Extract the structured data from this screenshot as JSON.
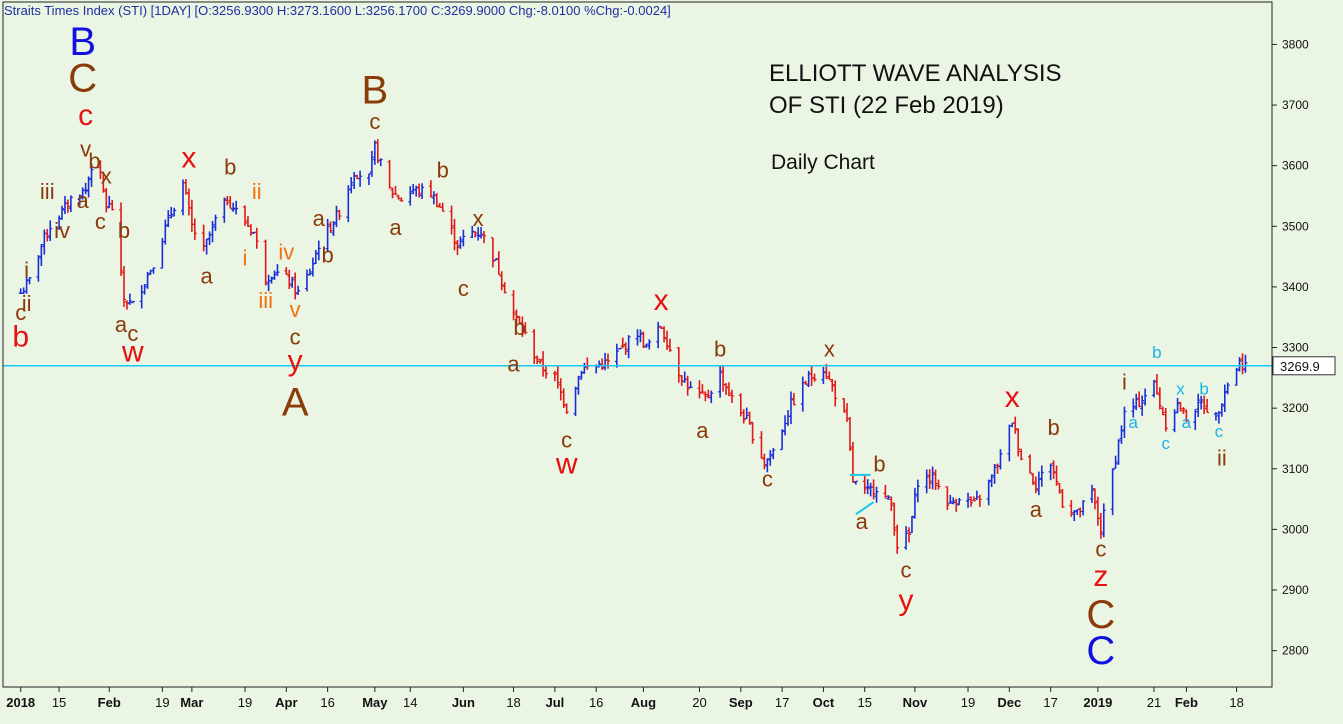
{
  "header": {
    "text": "Straits Times Index (STI) [1DAY] [O:3256.9300 H:3273.1600 L:3256.1700 C:3269.9000 Chg:-8.0100 %Chg:-0.0024]"
  },
  "annotation": {
    "title_line1": "ELLIOTT WAVE ANALYSIS",
    "title_line2": "OF STI (22 Feb 2019)",
    "subtitle": "Daily Chart"
  },
  "colors": {
    "background": "#eaf5e4",
    "up_bar": "#1a2ed8",
    "down_bar": "#e01818",
    "price_line": "#18c8f0",
    "label_brown": "#8b3a0a",
    "label_red": "#e81010",
    "label_blue": "#1010e0",
    "label_orange": "#f07010",
    "label_cyan": "#18b4e8"
  },
  "chart_data": {
    "type": "line",
    "series": [
      {
        "values": [
          [
            "2018-01-02",
            3390
          ],
          [
            "2018-01-05",
            3410
          ],
          [
            "2018-01-09",
            3470
          ],
          [
            "2018-01-12",
            3500
          ],
          [
            "2018-01-17",
            3530
          ],
          [
            "2018-01-19",
            3545
          ],
          [
            "2018-01-24",
            3560
          ],
          [
            "2018-01-26",
            3600
          ],
          [
            "2018-01-29",
            3580
          ],
          [
            "2018-01-31",
            3535
          ],
          [
            "2018-02-02",
            3530
          ],
          [
            "2018-02-06",
            3380
          ],
          [
            "2018-02-09",
            3370
          ],
          [
            "2018-02-13",
            3410
          ],
          [
            "2018-02-16",
            3440
          ],
          [
            "2018-02-21",
            3510
          ],
          [
            "2018-02-26",
            3570
          ],
          [
            "2018-03-01",
            3500
          ],
          [
            "2018-03-05",
            3460
          ],
          [
            "2018-03-09",
            3510
          ],
          [
            "2018-03-13",
            3545
          ],
          [
            "2018-03-16",
            3525
          ],
          [
            "2018-03-22",
            3490
          ],
          [
            "2018-03-26",
            3415
          ],
          [
            "2018-03-29",
            3425
          ],
          [
            "2018-04-03",
            3410
          ],
          [
            "2018-04-06",
            3390
          ],
          [
            "2018-04-10",
            3425
          ],
          [
            "2018-04-13",
            3470
          ],
          [
            "2018-04-17",
            3500
          ],
          [
            "2018-04-20",
            3525
          ],
          [
            "2018-04-25",
            3590
          ],
          [
            "2018-04-30",
            3580
          ],
          [
            "2018-05-02",
            3630
          ],
          [
            "2018-05-07",
            3560
          ],
          [
            "2018-05-11",
            3545
          ],
          [
            "2018-05-15",
            3560
          ],
          [
            "2018-05-21",
            3555
          ],
          [
            "2018-05-25",
            3525
          ],
          [
            "2018-05-30",
            3470
          ],
          [
            "2018-06-04",
            3490
          ],
          [
            "2018-06-07",
            3490
          ],
          [
            "2018-06-12",
            3440
          ],
          [
            "2018-06-18",
            3355
          ],
          [
            "2018-06-22",
            3320
          ],
          [
            "2018-06-27",
            3270
          ],
          [
            "2018-07-02",
            3250
          ],
          [
            "2018-07-06",
            3200
          ],
          [
            "2018-07-11",
            3265
          ],
          [
            "2018-07-16",
            3270
          ],
          [
            "2018-07-20",
            3275
          ],
          [
            "2018-07-25",
            3300
          ],
          [
            "2018-07-30",
            3325
          ],
          [
            "2018-08-02",
            3300
          ],
          [
            "2018-08-07",
            3335
          ],
          [
            "2018-08-13",
            3260
          ],
          [
            "2018-08-17",
            3230
          ],
          [
            "2018-08-22",
            3215
          ],
          [
            "2018-08-27",
            3255
          ],
          [
            "2018-08-31",
            3215
          ],
          [
            "2018-09-05",
            3180
          ],
          [
            "2018-09-11",
            3110
          ],
          [
            "2018-09-14",
            3130
          ],
          [
            "2018-09-20",
            3205
          ],
          [
            "2018-09-26",
            3250
          ],
          [
            "2018-10-01",
            3265
          ],
          [
            "2018-10-04",
            3235
          ],
          [
            "2018-10-09",
            3175
          ],
          [
            "2018-10-11",
            3080
          ],
          [
            "2018-10-15",
            3060
          ],
          [
            "2018-10-19",
            3070
          ],
          [
            "2018-10-24",
            3040
          ],
          [
            "2018-10-26",
            2975
          ],
          [
            "2018-10-30",
            2990
          ],
          [
            "2018-11-02",
            3080
          ],
          [
            "2018-11-07",
            3085
          ],
          [
            "2018-11-13",
            3040
          ],
          [
            "2018-11-16",
            3055
          ],
          [
            "2018-11-21",
            3040
          ],
          [
            "2018-11-26",
            3075
          ],
          [
            "2018-11-30",
            3120
          ],
          [
            "2018-12-04",
            3180
          ],
          [
            "2018-12-07",
            3120
          ],
          [
            "2018-12-12",
            3075
          ],
          [
            "2018-12-17",
            3110
          ],
          [
            "2018-12-21",
            3045
          ],
          [
            "2018-12-26",
            3025
          ],
          [
            "2018-12-31",
            3060
          ],
          [
            "2019-01-03",
            3000
          ],
          [
            "2019-01-08",
            3120
          ],
          [
            "2019-01-11",
            3190
          ],
          [
            "2019-01-16",
            3210
          ],
          [
            "2019-01-21",
            3240
          ],
          [
            "2019-01-25",
            3175
          ],
          [
            "2019-01-29",
            3205
          ],
          [
            "2019-02-01",
            3185
          ],
          [
            "2019-02-06",
            3210
          ],
          [
            "2019-02-11",
            3185
          ],
          [
            "2019-02-14",
            3230
          ],
          [
            "2019-02-19",
            3275
          ],
          [
            "2019-02-22",
            3270
          ]
        ]
      }
    ],
    "current_price": 3269.9,
    "current_price_label": "3269.9",
    "ylim": [
      2740,
      3870
    ],
    "yticks": [
      2800,
      2900,
      3000,
      3100,
      3200,
      3300,
      3400,
      3500,
      3600,
      3700,
      3800
    ],
    "xlim": [
      "2017-12-27",
      "2019-03-02"
    ],
    "xticks": [
      {
        "label": "2018",
        "date": "2018-01-02",
        "bold": true
      },
      {
        "label": "15",
        "date": "2018-01-15",
        "bold": false
      },
      {
        "label": "Feb",
        "date": "2018-02-01",
        "bold": true
      },
      {
        "label": "19",
        "date": "2018-02-19",
        "bold": false
      },
      {
        "label": "Mar",
        "date": "2018-03-01",
        "bold": true
      },
      {
        "label": "19",
        "date": "2018-03-19",
        "bold": false
      },
      {
        "label": "Apr",
        "date": "2018-04-02",
        "bold": true
      },
      {
        "label": "16",
        "date": "2018-04-16",
        "bold": false
      },
      {
        "label": "May",
        "date": "2018-05-02",
        "bold": true
      },
      {
        "label": "14",
        "date": "2018-05-14",
        "bold": false
      },
      {
        "label": "Jun",
        "date": "2018-06-01",
        "bold": true
      },
      {
        "label": "18",
        "date": "2018-06-18",
        "bold": false
      },
      {
        "label": "Jul",
        "date": "2018-07-02",
        "bold": true
      },
      {
        "label": "16",
        "date": "2018-07-16",
        "bold": false
      },
      {
        "label": "Aug",
        "date": "2018-08-01",
        "bold": true
      },
      {
        "label": "20",
        "date": "2018-08-20",
        "bold": false
      },
      {
        "label": "Sep",
        "date": "2018-09-03",
        "bold": true
      },
      {
        "label": "17",
        "date": "2018-09-17",
        "bold": false
      },
      {
        "label": "Oct",
        "date": "2018-10-01",
        "bold": true
      },
      {
        "label": "15",
        "date": "2018-10-15",
        "bold": false
      },
      {
        "label": "Nov",
        "date": "2018-11-01",
        "bold": true
      },
      {
        "label": "19",
        "date": "2018-11-19",
        "bold": false
      },
      {
        "label": "Dec",
        "date": "2018-12-03",
        "bold": true
      },
      {
        "label": "17",
        "date": "2018-12-17",
        "bold": false
      },
      {
        "label": "2019",
        "date": "2019-01-02",
        "bold": true
      },
      {
        "label": "21",
        "date": "2019-01-21",
        "bold": false
      },
      {
        "label": "Feb",
        "date": "2019-02-01",
        "bold": true
      },
      {
        "label": "18",
        "date": "2019-02-18",
        "bold": false
      }
    ],
    "wave_labels": [
      {
        "text": "B",
        "date": "2018-01-23",
        "price": 3800,
        "color": "blue",
        "size": "xl"
      },
      {
        "text": "C",
        "date": "2018-01-23",
        "price": 3740,
        "color": "brown",
        "size": "xl"
      },
      {
        "text": "c",
        "date": "2018-01-24",
        "price": 3680,
        "color": "red",
        "size": "l"
      },
      {
        "text": "v",
        "date": "2018-01-24",
        "price": 3625,
        "color": "brown",
        "size": "m"
      },
      {
        "text": "b",
        "date": "2018-01-27",
        "price": 3605,
        "color": "brown",
        "size": "m"
      },
      {
        "text": "x",
        "date": "2018-01-31",
        "price": 3580,
        "color": "brown",
        "size": "m"
      },
      {
        "text": "iii",
        "date": "2018-01-11",
        "price": 3555,
        "color": "brown",
        "size": "m"
      },
      {
        "text": "a",
        "date": "2018-01-23",
        "price": 3540,
        "color": "brown",
        "size": "m"
      },
      {
        "text": "c",
        "date": "2018-01-29",
        "price": 3505,
        "color": "brown",
        "size": "m"
      },
      {
        "text": "iv",
        "date": "2018-01-16",
        "price": 3490,
        "color": "brown",
        "size": "m"
      },
      {
        "text": "b",
        "date": "2018-02-06",
        "price": 3490,
        "color": "brown",
        "size": "m"
      },
      {
        "text": "i",
        "date": "2018-01-04",
        "price": 3425,
        "color": "brown",
        "size": "m"
      },
      {
        "text": "ii",
        "date": "2018-01-04",
        "price": 3370,
        "color": "brown",
        "size": "m"
      },
      {
        "text": "c",
        "date": "2018-01-02",
        "price": 3355,
        "color": "brown",
        "size": "m"
      },
      {
        "text": "b",
        "date": "2018-01-02",
        "price": 3315,
        "color": "red",
        "size": "l"
      },
      {
        "text": "a",
        "date": "2018-02-05",
        "price": 3335,
        "color": "brown",
        "size": "m"
      },
      {
        "text": "c",
        "date": "2018-02-09",
        "price": 3320,
        "color": "brown",
        "size": "m"
      },
      {
        "text": "w",
        "date": "2018-02-09",
        "price": 3290,
        "color": "red",
        "size": "l"
      },
      {
        "text": "x",
        "date": "2018-02-28",
        "price": 3610,
        "color": "red",
        "size": "l"
      },
      {
        "text": "b",
        "date": "2018-03-14",
        "price": 3595,
        "color": "brown",
        "size": "m"
      },
      {
        "text": "ii",
        "date": "2018-03-23",
        "price": 3555,
        "color": "orange",
        "size": "m"
      },
      {
        "text": "a",
        "date": "2018-03-06",
        "price": 3415,
        "color": "brown",
        "size": "m"
      },
      {
        "text": "i",
        "date": "2018-03-19",
        "price": 3445,
        "color": "orange",
        "size": "m"
      },
      {
        "text": "iv",
        "date": "2018-04-02",
        "price": 3455,
        "color": "orange",
        "size": "m"
      },
      {
        "text": "iii",
        "date": "2018-03-26",
        "price": 3375,
        "color": "orange",
        "size": "m"
      },
      {
        "text": "v",
        "date": "2018-04-05",
        "price": 3360,
        "color": "orange",
        "size": "m"
      },
      {
        "text": "c",
        "date": "2018-04-05",
        "price": 3315,
        "color": "brown",
        "size": "m"
      },
      {
        "text": "y",
        "date": "2018-04-05",
        "price": 3275,
        "color": "red",
        "size": "l"
      },
      {
        "text": "A",
        "date": "2018-04-05",
        "price": 3205,
        "color": "brown",
        "size": "xl"
      },
      {
        "text": "a",
        "date": "2018-04-13",
        "price": 3510,
        "color": "brown",
        "size": "m"
      },
      {
        "text": "b",
        "date": "2018-04-16",
        "price": 3450,
        "color": "brown",
        "size": "m"
      },
      {
        "text": "B",
        "date": "2018-05-02",
        "price": 3720,
        "color": "brown",
        "size": "xl"
      },
      {
        "text": "c",
        "date": "2018-05-02",
        "price": 3670,
        "color": "brown",
        "size": "m"
      },
      {
        "text": "a",
        "date": "2018-05-09",
        "price": 3495,
        "color": "brown",
        "size": "m"
      },
      {
        "text": "b",
        "date": "2018-05-25",
        "price": 3590,
        "color": "brown",
        "size": "m"
      },
      {
        "text": "x",
        "date": "2018-06-06",
        "price": 3510,
        "color": "brown",
        "size": "m"
      },
      {
        "text": "c",
        "date": "2018-06-01",
        "price": 3395,
        "color": "brown",
        "size": "m"
      },
      {
        "text": "b",
        "date": "2018-06-20",
        "price": 3330,
        "color": "brown",
        "size": "m"
      },
      {
        "text": "a",
        "date": "2018-06-18",
        "price": 3270,
        "color": "brown",
        "size": "m"
      },
      {
        "text": "c",
        "date": "2018-07-06",
        "price": 3145,
        "color": "brown",
        "size": "m"
      },
      {
        "text": "w",
        "date": "2018-07-06",
        "price": 3105,
        "color": "red",
        "size": "l"
      },
      {
        "text": "x",
        "date": "2018-08-07",
        "price": 3375,
        "color": "red",
        "size": "l"
      },
      {
        "text": "b",
        "date": "2018-08-27",
        "price": 3295,
        "color": "brown",
        "size": "m"
      },
      {
        "text": "a",
        "date": "2018-08-21",
        "price": 3160,
        "color": "brown",
        "size": "m"
      },
      {
        "text": "c",
        "date": "2018-09-12",
        "price": 3080,
        "color": "brown",
        "size": "m"
      },
      {
        "text": "x",
        "date": "2018-10-03",
        "price": 3295,
        "color": "brown",
        "size": "m"
      },
      {
        "text": "b",
        "date": "2018-10-20",
        "price": 3105,
        "color": "brown",
        "size": "m"
      },
      {
        "text": "a",
        "date": "2018-10-14",
        "price": 3010,
        "color": "brown",
        "size": "m"
      },
      {
        "text": "c",
        "date": "2018-10-29",
        "price": 2930,
        "color": "brown",
        "size": "m"
      },
      {
        "text": "y",
        "date": "2018-10-29",
        "price": 2880,
        "color": "red",
        "size": "l"
      },
      {
        "text": "x",
        "date": "2018-12-04",
        "price": 3215,
        "color": "red",
        "size": "l"
      },
      {
        "text": "b",
        "date": "2018-12-18",
        "price": 3165,
        "color": "brown",
        "size": "m"
      },
      {
        "text": "a",
        "date": "2018-12-12",
        "price": 3030,
        "color": "brown",
        "size": "m"
      },
      {
        "text": "c",
        "date": "2019-01-03",
        "price": 2965,
        "color": "brown",
        "size": "m"
      },
      {
        "text": "z",
        "date": "2019-01-03",
        "price": 2920,
        "color": "red",
        "size": "l"
      },
      {
        "text": "C",
        "date": "2019-01-03",
        "price": 2855,
        "color": "brown",
        "size": "xl"
      },
      {
        "text": "C",
        "date": "2019-01-03",
        "price": 2795,
        "color": "blue",
        "size": "xl"
      },
      {
        "text": "i",
        "date": "2019-01-11",
        "price": 3240,
        "color": "brown",
        "size": "m"
      },
      {
        "text": "a",
        "date": "2019-01-14",
        "price": 3175,
        "color": "cyan",
        "size": "s"
      },
      {
        "text": "b",
        "date": "2019-01-22",
        "price": 3290,
        "color": "cyan",
        "size": "s"
      },
      {
        "text": "c",
        "date": "2019-01-25",
        "price": 3140,
        "color": "cyan",
        "size": "s"
      },
      {
        "text": "x",
        "date": "2019-01-30",
        "price": 3230,
        "color": "cyan",
        "size": "s"
      },
      {
        "text": "a",
        "date": "2019-02-01",
        "price": 3175,
        "color": "cyan",
        "size": "s"
      },
      {
        "text": "b",
        "date": "2019-02-07",
        "price": 3230,
        "color": "cyan",
        "size": "s"
      },
      {
        "text": "c",
        "date": "2019-02-12",
        "price": 3160,
        "color": "cyan",
        "size": "s"
      },
      {
        "text": "ii",
        "date": "2019-02-13",
        "price": 3115,
        "color": "brown",
        "size": "m"
      }
    ],
    "triangle": {
      "top": [
        [
          "2018-10-10",
          3090
        ],
        [
          "2018-10-17",
          3090
        ]
      ],
      "bottom": [
        [
          "2018-10-12",
          3025
        ],
        [
          "2018-10-18",
          3045
        ]
      ]
    }
  }
}
